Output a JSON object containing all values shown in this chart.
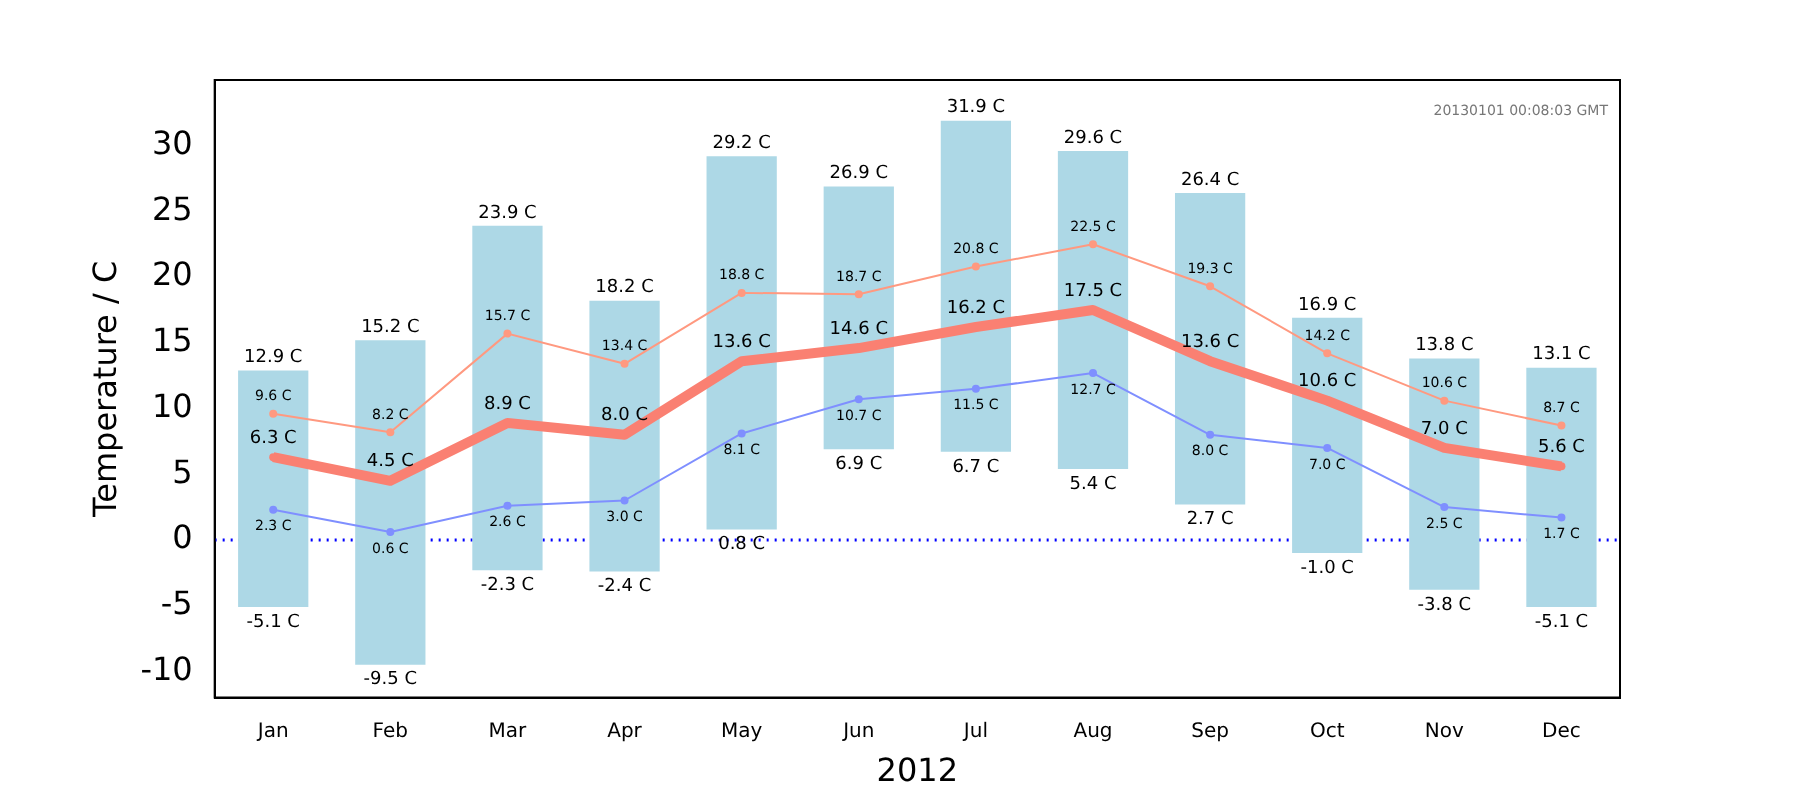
{
  "chart_data": {
    "type": "line",
    "xlabel": "2012",
    "ylabel": "Temperature / C",
    "categories": [
      "Jan",
      "Feb",
      "Mar",
      "Apr",
      "May",
      "Jun",
      "Jul",
      "Aug",
      "Sep",
      "Oct",
      "Nov",
      "Dec"
    ],
    "ylim": [
      -12,
      35
    ],
    "yticks": [
      -10,
      -5,
      0,
      5,
      10,
      15,
      20,
      25,
      30
    ],
    "grid": false,
    "legend": false,
    "marker": "circle",
    "line_style": "solid",
    "series": [
      {
        "type": "bar",
        "color": "#add8e6",
        "base": [
          -5.1,
          -9.5,
          -2.3,
          -2.4,
          0.8,
          6.9,
          6.7,
          5.4,
          2.7,
          -1.0,
          -3.8,
          -5.1
        ],
        "values": [
          18.0,
          24.7,
          26.2,
          20.6,
          28.4,
          20.0,
          25.2,
          24.2,
          23.7,
          17.9,
          17.6,
          18.2
        ],
        "value_labels": [
          "12.9 C",
          "15.2 C",
          "23.9 C",
          "18.2 C",
          "29.2 C",
          "26.9 C",
          "31.9 C",
          "29.6 C",
          "26.4 C",
          "16.9 C",
          "13.8 C",
          "13.1 C"
        ]
      },
      {
        "color": "#fa8072",
        "values": [
          6.3,
          4.5,
          8.9,
          8.0,
          13.6,
          14.6,
          16.2,
          17.5,
          13.6,
          10.6,
          7.0,
          5.6
        ],
        "value_labels": [
          "6.3 C",
          "4.5 C",
          "8.9 C",
          "8.0 C",
          "13.6 C",
          "14.6 C",
          "16.2 C",
          "17.5 C",
          "13.6 C",
          "10.6 C",
          "7.0 C",
          "5.6 C"
        ]
      },
      {
        "color": "#ff9980",
        "values": [
          9.6,
          8.2,
          15.7,
          13.4,
          18.8,
          18.7,
          20.8,
          22.5,
          19.3,
          14.2,
          10.6,
          8.7
        ],
        "value_labels": [
          "9.6 C",
          "8.2 C",
          "15.7 C",
          "13.4 C",
          "18.8 C",
          "18.7 C",
          "20.8 C",
          "22.5 C",
          "19.3 C",
          "14.2 C",
          "10.6 C",
          "8.7 C"
        ]
      },
      {
        "color": "#7f8fff",
        "values": [
          2.3,
          0.6,
          2.6,
          3.0,
          8.1,
          10.7,
          11.5,
          12.7,
          8.0,
          7.0,
          2.5,
          1.7
        ],
        "value_labels": [
          "2.3 C",
          "0.6 C",
          "2.6 C",
          "3.0 C",
          "8.1 C",
          "10.7 C",
          "11.5 C",
          "12.7 C",
          "8.0 C",
          "7.0 C",
          "2.5 C",
          "1.7 C"
        ]
      }
    ],
    "ref_lines": [
      {
        "axis": "y",
        "value": 0,
        "color": "#0000ff",
        "line_style": "dotted"
      }
    ],
    "annotations": [
      "20130101 00:08:03 GMT",
      {
        "text": "-5.1 C",
        "x": "Jan",
        "y": -5.1
      },
      {
        "text": "-9.5 C",
        "x": "Feb",
        "y": -9.5
      },
      {
        "text": "-2.3 C",
        "x": "Mar",
        "y": -2.3
      },
      {
        "text": "-2.4 C",
        "x": "Apr",
        "y": -2.4
      },
      {
        "text": "0.8 C",
        "x": "May",
        "y": 0.8
      },
      {
        "text": "6.9 C",
        "x": "Jun",
        "y": 6.9
      },
      {
        "text": "6.7 C",
        "x": "Jul",
        "y": 6.7
      },
      {
        "text": "5.4 C",
        "x": "Aug",
        "y": 5.4
      },
      {
        "text": "2.7 C",
        "x": "Sep",
        "y": 2.7
      },
      {
        "text": "-1.0 C",
        "x": "Oct",
        "y": -1.0
      },
      {
        "text": "-3.8 C",
        "x": "Nov",
        "y": -3.8
      },
      {
        "text": "-5.1 C",
        "x": "Dec",
        "y": -5.1
      }
    ]
  }
}
